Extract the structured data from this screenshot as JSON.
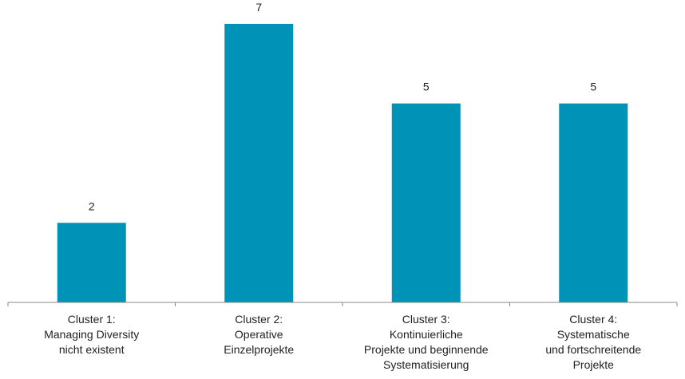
{
  "chart_data": {
    "type": "bar",
    "categories": [
      [
        "Cluster 1:",
        "Managing Diversity",
        "nicht existent"
      ],
      [
        "Cluster 2:",
        "Operative",
        "Einzelprojekte"
      ],
      [
        "Cluster 3:",
        "Kontinuierliche",
        "Projekte und beginnende",
        "Systematisierung"
      ],
      [
        "Cluster 4:",
        "Systematische",
        "und fortschreitende",
        "Projekte"
      ]
    ],
    "values": [
      2,
      7,
      5,
      5
    ],
    "data_labels": [
      "2",
      "7",
      "5",
      "5"
    ],
    "ylim": [
      0,
      7.6
    ],
    "grid": false,
    "legend": "none",
    "title": "",
    "xlabel": "",
    "ylabel": "",
    "bar_color": "#0093b8",
    "axis_color": "#888888"
  }
}
